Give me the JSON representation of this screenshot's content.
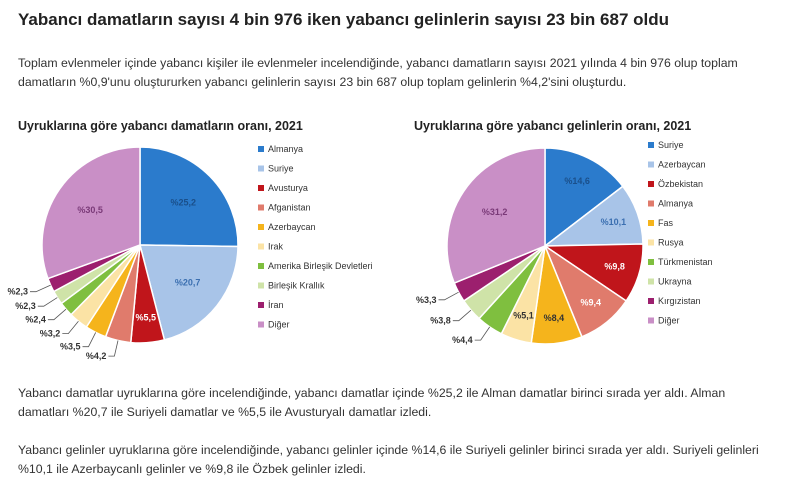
{
  "headline": "Yabancı damatların sayısı 4 bin 976 iken yabancı gelinlerin sayısı 23 bin 687 oldu",
  "intro": "Toplam evlenmeler içinde yabancı kişiler ile evlenmeler incelendiğinde, yabancı damatların sayısı 2021 yılında 4 bin 976 olup toplam damatların %0,9'unu oluştururken yabancı gelinlerin sayısı 23 bin 687 olup toplam gelinlerin %4,2'sini oluşturdu.",
  "paragraph_grooms": "Yabancı damatlar uyruklarına göre incelendiğinde, yabancı damatlar içinde %25,2 ile Alman damatlar birinci sırada yer aldı. Alman damatları %20,7 ile Suriyeli damatlar ve %5,5 ile Avusturyalı damatlar izledi.",
  "paragraph_brides": "Yabancı gelinler uyruklarına göre incelendiğinde, yabancı gelinler içinde %14,6 ile Suriyeli gelinler birinci sırada yer aldı. Suriyeli gelinleri %10,1 ile Azerbaycanlı gelinler ve %9,8 ile Özbek gelinler izledi.",
  "chart_data": [
    {
      "type": "pie",
      "title": "Uyruklarına göre yabancı damatların oranı, 2021",
      "legend_position": "right",
      "slices": [
        {
          "name": "Almanya",
          "value": 25.2,
          "label": "%25,2",
          "color": "#2b7bcc",
          "label_color": "#1a4f8a"
        },
        {
          "name": "Suriye",
          "value": 20.7,
          "label": "%20,7",
          "color": "#a8c4e8",
          "label_color": "#3b6fb0"
        },
        {
          "name": "Avusturya",
          "value": 5.5,
          "label": "%5,5",
          "color": "#c0151b",
          "label_color": "#ffffff"
        },
        {
          "name": "Afganistan",
          "value": 4.2,
          "label": "%4,2",
          "color": "#e07b6c",
          "label_color": "#333333"
        },
        {
          "name": "Azerbaycan",
          "value": 3.5,
          "label": "%3,5",
          "color": "#f5b41c",
          "label_color": "#333333"
        },
        {
          "name": "Irak",
          "value": 3.2,
          "label": "%3,2",
          "color": "#fbe3a5",
          "label_color": "#333333"
        },
        {
          "name": "Amerika Birleşik Devletleri",
          "value": 2.4,
          "label": "%2,4",
          "color": "#7fbf3f",
          "label_color": "#333333"
        },
        {
          "name": "Birleşik Krallık",
          "value": 2.3,
          "label": "%2,3",
          "color": "#cfe3a8",
          "label_color": "#333333"
        },
        {
          "name": "İran",
          "value": 2.3,
          "label": "%2,3",
          "color": "#9c1f6e",
          "label_color": "#333333"
        },
        {
          "name": "Diğer",
          "value": 30.5,
          "label": "%30,5",
          "color": "#c98fc6",
          "label_color": "#7a3a78"
        }
      ]
    },
    {
      "type": "pie",
      "title": "Uyruklarına göre yabancı gelinlerin oranı, 2021",
      "legend_position": "right",
      "slices": [
        {
          "name": "Suriye",
          "value": 14.6,
          "label": "%14,6",
          "color": "#2b7bcc",
          "label_color": "#1a4f8a"
        },
        {
          "name": "Azerbaycan",
          "value": 10.1,
          "label": "%10,1",
          "color": "#a8c4e8",
          "label_color": "#3b6fb0"
        },
        {
          "name": "Özbekistan",
          "value": 9.8,
          "label": "%9,8",
          "color": "#c0151b",
          "label_color": "#ffffff"
        },
        {
          "name": "Almanya",
          "value": 9.4,
          "label": "%9,4",
          "color": "#e07b6c",
          "label_color": "#ffffff"
        },
        {
          "name": "Fas",
          "value": 8.4,
          "label": "%8,4",
          "color": "#f5b41c",
          "label_color": "#333333"
        },
        {
          "name": "Rusya",
          "value": 5.1,
          "label": "%5,1",
          "color": "#fbe3a5",
          "label_color": "#333333"
        },
        {
          "name": "Türkmenistan",
          "value": 4.4,
          "label": "%4,4",
          "color": "#7fbf3f",
          "label_color": "#333333"
        },
        {
          "name": "Ukrayna",
          "value": 3.8,
          "label": "%3,8",
          "color": "#cfe3a8",
          "label_color": "#333333"
        },
        {
          "name": "Kırgızistan",
          "value": 3.3,
          "label": "%3,3",
          "color": "#9c1f6e",
          "label_color": "#333333"
        },
        {
          "name": "Diğer",
          "value": 31.2,
          "label": "%31,2",
          "color": "#c98fc6",
          "label_color": "#7a3a78"
        }
      ]
    }
  ]
}
